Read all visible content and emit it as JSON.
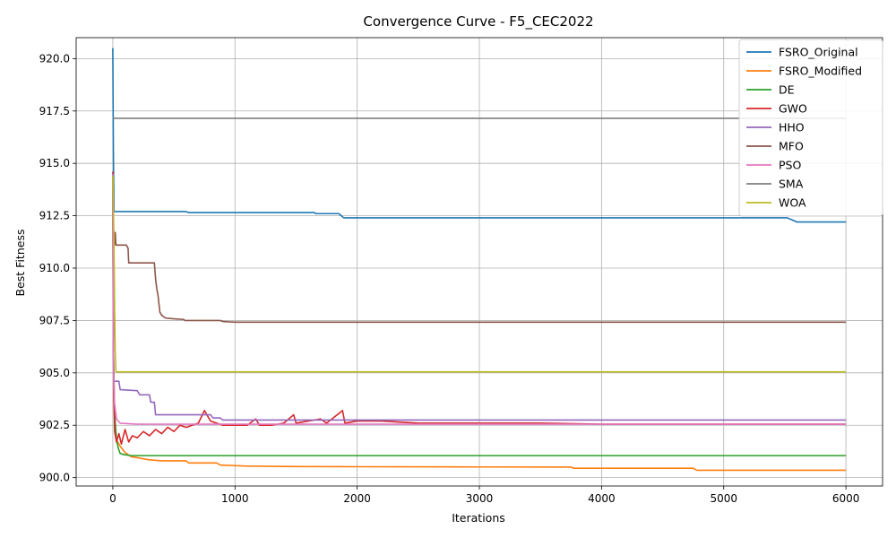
{
  "chart_data": {
    "type": "line",
    "title": "Convergence Curve - F5_CEC2022",
    "xlabel": "Iterations",
    "ylabel": "Best Fitness",
    "xlim": [
      -300,
      6300
    ],
    "ylim": [
      899.6,
      921.0
    ],
    "xticks": [
      0,
      1000,
      2000,
      3000,
      4000,
      5000,
      6000
    ],
    "yticks": [
      900.0,
      902.5,
      905.0,
      907.5,
      910.0,
      912.5,
      915.0,
      917.5,
      920.0
    ],
    "ytick_labels": [
      "900.0",
      "902.5",
      "905.0",
      "907.5",
      "910.0",
      "912.5",
      "915.0",
      "917.5",
      "920.0"
    ],
    "grid": true,
    "legend_position": "top-right",
    "series": [
      {
        "name": "FSRO_Original",
        "color": "#1f77b4",
        "points": [
          [
            0,
            920.5
          ],
          [
            3,
            917.2
          ],
          [
            6,
            914.6
          ],
          [
            10,
            912.7
          ],
          [
            600,
            912.7
          ],
          [
            620,
            912.65
          ],
          [
            1650,
            912.65
          ],
          [
            1660,
            912.6
          ],
          [
            1850,
            912.6
          ],
          [
            1890,
            912.4
          ],
          [
            5520,
            912.4
          ],
          [
            5560,
            912.3
          ],
          [
            5600,
            912.2
          ],
          [
            6000,
            912.2
          ]
        ]
      },
      {
        "name": "FSRO_Modified",
        "color": "#ff7f0e",
        "points": [
          [
            0,
            913.5
          ],
          [
            5,
            906.0
          ],
          [
            15,
            903.0
          ],
          [
            30,
            901.8
          ],
          [
            60,
            901.5
          ],
          [
            100,
            901.2
          ],
          [
            150,
            901.0
          ],
          [
            200,
            900.95
          ],
          [
            300,
            900.85
          ],
          [
            400,
            900.8
          ],
          [
            600,
            900.8
          ],
          [
            620,
            900.7
          ],
          [
            850,
            900.7
          ],
          [
            880,
            900.6
          ],
          [
            1000,
            900.57
          ],
          [
            1100,
            900.55
          ],
          [
            1500,
            900.53
          ],
          [
            2000,
            900.52
          ],
          [
            3000,
            900.51
          ],
          [
            3750,
            900.5
          ],
          [
            3770,
            900.45
          ],
          [
            4750,
            900.45
          ],
          [
            4780,
            900.35
          ],
          [
            6000,
            900.35
          ]
        ]
      },
      {
        "name": "DE",
        "color": "#2ca02c",
        "points": [
          [
            0,
            914.5
          ],
          [
            5,
            906.0
          ],
          [
            15,
            903.0
          ],
          [
            30,
            901.8
          ],
          [
            45,
            901.4
          ],
          [
            60,
            901.15
          ],
          [
            90,
            901.1
          ],
          [
            150,
            901.05
          ],
          [
            300,
            901.05
          ],
          [
            6000,
            901.05
          ]
        ]
      },
      {
        "name": "GWO",
        "color": "#d62728",
        "points": [
          [
            0,
            914.6
          ],
          [
            4,
            908.0
          ],
          [
            8,
            904.0
          ],
          [
            15,
            902.2
          ],
          [
            30,
            901.7
          ],
          [
            50,
            902.1
          ],
          [
            70,
            901.6
          ],
          [
            100,
            902.3
          ],
          [
            130,
            901.7
          ],
          [
            160,
            902.0
          ],
          [
            200,
            901.9
          ],
          [
            250,
            902.2
          ],
          [
            300,
            902.0
          ],
          [
            350,
            902.3
          ],
          [
            400,
            902.1
          ],
          [
            450,
            902.4
          ],
          [
            500,
            902.2
          ],
          [
            550,
            902.5
          ],
          [
            600,
            902.4
          ],
          [
            700,
            902.6
          ],
          [
            750,
            903.2
          ],
          [
            800,
            902.7
          ],
          [
            900,
            902.5
          ],
          [
            1000,
            902.5
          ],
          [
            1100,
            902.5
          ],
          [
            1170,
            902.8
          ],
          [
            1200,
            902.5
          ],
          [
            1300,
            902.5
          ],
          [
            1400,
            902.6
          ],
          [
            1480,
            903.0
          ],
          [
            1500,
            902.6
          ],
          [
            1600,
            902.7
          ],
          [
            1700,
            902.8
          ],
          [
            1750,
            902.6
          ],
          [
            1880,
            903.2
          ],
          [
            1900,
            902.6
          ],
          [
            2000,
            902.7
          ],
          [
            2200,
            902.7
          ],
          [
            2500,
            902.6
          ],
          [
            3000,
            902.6
          ],
          [
            3500,
            902.6
          ],
          [
            4000,
            902.55
          ],
          [
            5000,
            902.55
          ],
          [
            6000,
            902.55
          ]
        ]
      },
      {
        "name": "HHO",
        "color": "#9467bd",
        "points": [
          [
            0,
            914.2
          ],
          [
            3,
            907.0
          ],
          [
            6,
            905.0
          ],
          [
            8,
            904.6
          ],
          [
            50,
            904.6
          ],
          [
            60,
            904.2
          ],
          [
            200,
            904.15
          ],
          [
            220,
            903.95
          ],
          [
            300,
            903.95
          ],
          [
            310,
            903.6
          ],
          [
            340,
            903.6
          ],
          [
            350,
            903.0
          ],
          [
            800,
            903.0
          ],
          [
            820,
            902.85
          ],
          [
            880,
            902.85
          ],
          [
            900,
            902.75
          ],
          [
            6000,
            902.75
          ]
        ]
      },
      {
        "name": "MFO",
        "color": "#8c564b",
        "points": [
          [
            0,
            913.0
          ],
          [
            5,
            912.0
          ],
          [
            12,
            911.1
          ],
          [
            20,
            911.7
          ],
          [
            25,
            911.1
          ],
          [
            110,
            911.1
          ],
          [
            125,
            910.95
          ],
          [
            130,
            910.25
          ],
          [
            340,
            910.25
          ],
          [
            350,
            909.5
          ],
          [
            360,
            909.0
          ],
          [
            370,
            908.7
          ],
          [
            385,
            907.9
          ],
          [
            400,
            907.75
          ],
          [
            430,
            907.62
          ],
          [
            500,
            907.58
          ],
          [
            580,
            907.55
          ],
          [
            590,
            907.5
          ],
          [
            880,
            907.5
          ],
          [
            900,
            907.45
          ],
          [
            1000,
            907.42
          ],
          [
            6000,
            907.42
          ]
        ]
      },
      {
        "name": "PSO",
        "color": "#e377c2",
        "points": [
          [
            0,
            914.5
          ],
          [
            3,
            908.0
          ],
          [
            6,
            905.0
          ],
          [
            15,
            903.5
          ],
          [
            30,
            902.8
          ],
          [
            60,
            902.6
          ],
          [
            200,
            902.55
          ],
          [
            1000,
            902.55
          ],
          [
            6000,
            902.55
          ]
        ]
      },
      {
        "name": "SMA",
        "color": "#7f7f7f",
        "points": [
          [
            0,
            917.15
          ],
          [
            6000,
            917.15
          ]
        ]
      },
      {
        "name": "WOA",
        "color": "#bcbd22",
        "points": [
          [
            0,
            914.4
          ],
          [
            5,
            913.0
          ],
          [
            10,
            911.0
          ],
          [
            15,
            908.0
          ],
          [
            20,
            906.0
          ],
          [
            25,
            905.1
          ],
          [
            30,
            905.05
          ],
          [
            6000,
            905.05
          ]
        ]
      }
    ]
  }
}
